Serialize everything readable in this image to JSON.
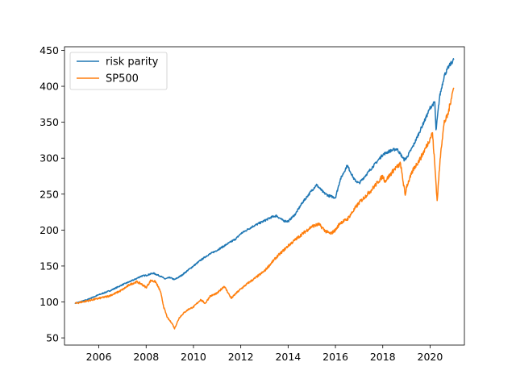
{
  "chart_data": {
    "type": "line",
    "title": "",
    "xlabel": "",
    "ylabel": "",
    "xlim": [
      2004.55,
      2021.45
    ],
    "ylim": [
      40,
      455
    ],
    "xticks": [
      2006,
      2008,
      2010,
      2012,
      2014,
      2016,
      2018,
      2020
    ],
    "xtick_labels": [
      "2006",
      "2008",
      "2010",
      "2012",
      "2014",
      "2016",
      "2018",
      "2020"
    ],
    "yticks": [
      50,
      100,
      150,
      200,
      250,
      300,
      350,
      400,
      450
    ],
    "ytick_labels": [
      "50",
      "100",
      "150",
      "200",
      "250",
      "300",
      "350",
      "400",
      "450"
    ],
    "grid": false,
    "legend": {
      "position": "top-left",
      "entries": [
        "risk parity",
        "SP500"
      ]
    },
    "series": [
      {
        "name": "risk parity",
        "color": "#1f77b4",
        "x": [
          2005.0,
          2005.5,
          2006.0,
          2006.5,
          2007.0,
          2007.5,
          2007.8,
          2008.0,
          2008.3,
          2008.6,
          2008.8,
          2009.0,
          2009.2,
          2009.5,
          2009.8,
          2010.0,
          2010.3,
          2010.6,
          2011.0,
          2011.5,
          2011.8,
          2012.0,
          2012.5,
          2013.0,
          2013.3,
          2013.5,
          2013.8,
          2014.0,
          2014.3,
          2014.6,
          2015.0,
          2015.2,
          2015.5,
          2015.7,
          2016.0,
          2016.2,
          2016.5,
          2016.8,
          2017.0,
          2017.5,
          2018.0,
          2018.3,
          2018.6,
          2018.9,
          2019.0,
          2019.3,
          2019.6,
          2019.9,
          2020.0,
          2020.2,
          2020.25,
          2020.4,
          2020.6,
          2020.8,
          2021.0
        ],
        "y": [
          98,
          103,
          110,
          116,
          124,
          131,
          136,
          137,
          140,
          136,
          132,
          134,
          131,
          137,
          145,
          150,
          158,
          165,
          172,
          182,
          188,
          195,
          205,
          213,
          218,
          220,
          213,
          212,
          222,
          238,
          255,
          263,
          252,
          248,
          245,
          270,
          290,
          270,
          265,
          285,
          305,
          310,
          313,
          298,
          300,
          318,
          340,
          362,
          370,
          378,
          338,
          385,
          415,
          428,
          437
        ]
      },
      {
        "name": "SP500",
        "color": "#ff7f0e",
        "x": [
          2005.0,
          2005.3,
          2005.6,
          2006.0,
          2006.4,
          2006.7,
          2007.0,
          2007.3,
          2007.6,
          2007.8,
          2008.0,
          2008.2,
          2008.4,
          2008.6,
          2008.75,
          2008.9,
          2009.1,
          2009.2,
          2009.4,
          2009.6,
          2009.8,
          2010.0,
          2010.3,
          2010.5,
          2010.7,
          2011.0,
          2011.3,
          2011.6,
          2011.8,
          2012.0,
          2012.3,
          2012.6,
          2013.0,
          2013.5,
          2014.0,
          2014.5,
          2015.0,
          2015.3,
          2015.6,
          2015.8,
          2016.0,
          2016.2,
          2016.5,
          2017.0,
          2017.5,
          2018.0,
          2018.1,
          2018.5,
          2018.75,
          2018.95,
          2019.0,
          2019.3,
          2019.6,
          2019.9,
          2020.1,
          2020.2,
          2020.3,
          2020.45,
          2020.6,
          2020.75,
          2020.9,
          2021.0
        ],
        "y": [
          98,
          100,
          102,
          105,
          108,
          112,
          117,
          124,
          128,
          125,
          120,
          130,
          128,
          115,
          92,
          78,
          70,
          63,
          78,
          85,
          90,
          93,
          103,
          98,
          108,
          112,
          122,
          105,
          112,
          118,
          126,
          133,
          143,
          162,
          178,
          192,
          205,
          208,
          198,
          195,
          200,
          210,
          215,
          238,
          255,
          275,
          268,
          285,
          292,
          248,
          260,
          285,
          300,
          320,
          335,
          290,
          240,
          310,
          350,
          360,
          385,
          398
        ]
      }
    ]
  }
}
